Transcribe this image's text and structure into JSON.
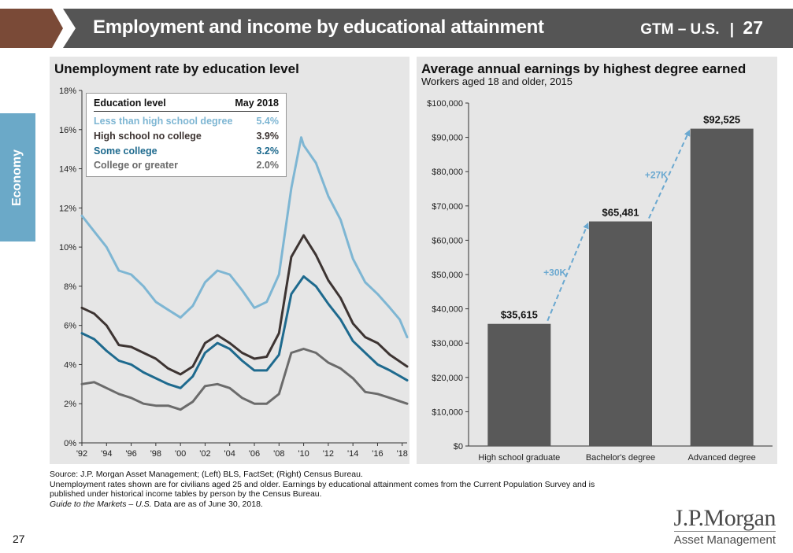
{
  "header": {
    "title": "Employment and income by educational attainment",
    "series": "GTM – U.S.",
    "separator": "|",
    "page": "27"
  },
  "sidebar": {
    "label": "Economy"
  },
  "left": {
    "title": "Unemployment rate by education level",
    "legend": {
      "head_label": "Education level",
      "head_value": "May 2018",
      "rows": [
        {
          "label": "Less than high school degree",
          "value": "5.4%",
          "color": "#7eb6d3"
        },
        {
          "label": "High school no college",
          "value": "3.9%",
          "color": "#3d3432"
        },
        {
          "label": "Some college",
          "value": "3.2%",
          "color": "#1e6a8e"
        },
        {
          "label": "College or greater",
          "value": "2.0%",
          "color": "#6b6b6b"
        }
      ]
    }
  },
  "right": {
    "title": "Average annual earnings by highest degree earned",
    "subtitle": "Workers aged 18 and older, 2015"
  },
  "chart_data": [
    {
      "type": "line",
      "title": "Unemployment rate by education level",
      "xlabel": "",
      "ylabel": "",
      "ylim": [
        0,
        18
      ],
      "yticks": [
        "0%",
        "2%",
        "4%",
        "6%",
        "8%",
        "10%",
        "12%",
        "14%",
        "16%",
        "18%"
      ],
      "xlim": [
        1992,
        2018.4
      ],
      "xticks": [
        {
          "v": 1992,
          "label": "'92"
        },
        {
          "v": 1994,
          "label": "'94"
        },
        {
          "v": 1996,
          "label": "'96"
        },
        {
          "v": 1998,
          "label": "'98"
        },
        {
          "v": 2000,
          "label": "'00"
        },
        {
          "v": 2002,
          "label": "'02"
        },
        {
          "v": 2004,
          "label": "'04"
        },
        {
          "v": 2006,
          "label": "'06"
        },
        {
          "v": 2008,
          "label": "'08"
        },
        {
          "v": 2010,
          "label": "'10"
        },
        {
          "v": 2012,
          "label": "'12"
        },
        {
          "v": 2014,
          "label": "'14"
        },
        {
          "v": 2016,
          "label": "'16"
        },
        {
          "v": 2018,
          "label": "'18"
        }
      ],
      "series": [
        {
          "name": "Less than high school degree",
          "color": "#7eb6d3",
          "x": [
            1992,
            1993,
            1994,
            1995,
            1996,
            1997,
            1998,
            1999,
            2000,
            2001,
            2002,
            2003,
            2004,
            2005,
            2006,
            2007,
            2008,
            2009,
            2009.8,
            2010,
            2011,
            2012,
            2013,
            2014,
            2015,
            2016,
            2017,
            2017.8,
            2018.4
          ],
          "y": [
            11.6,
            10.8,
            10.0,
            8.8,
            8.6,
            8.0,
            7.2,
            6.8,
            6.4,
            7.0,
            8.2,
            8.8,
            8.6,
            7.8,
            6.9,
            7.2,
            8.6,
            13.0,
            15.6,
            15.2,
            14.3,
            12.6,
            11.4,
            9.4,
            8.2,
            7.6,
            6.9,
            6.3,
            5.4
          ]
        },
        {
          "name": "High school no college",
          "color": "#3d3432",
          "x": [
            1992,
            1993,
            1994,
            1995,
            1996,
            1997,
            1998,
            1999,
            2000,
            2001,
            2002,
            2003,
            2004,
            2005,
            2006,
            2007,
            2008,
            2009,
            2010,
            2011,
            2012,
            2013,
            2014,
            2015,
            2016,
            2017,
            2018.4
          ],
          "y": [
            6.9,
            6.6,
            6.0,
            5.0,
            4.9,
            4.6,
            4.3,
            3.8,
            3.5,
            3.9,
            5.1,
            5.5,
            5.1,
            4.6,
            4.3,
            4.4,
            5.6,
            9.5,
            10.6,
            9.6,
            8.3,
            7.4,
            6.1,
            5.4,
            5.1,
            4.5,
            3.9
          ]
        },
        {
          "name": "Some college",
          "color": "#1e6a8e",
          "x": [
            1992,
            1993,
            1994,
            1995,
            1996,
            1997,
            1998,
            1999,
            2000,
            2001,
            2002,
            2003,
            2004,
            2005,
            2006,
            2007,
            2008,
            2009,
            2010,
            2011,
            2012,
            2013,
            2014,
            2015,
            2016,
            2017,
            2018.4
          ],
          "y": [
            5.6,
            5.3,
            4.7,
            4.2,
            4.0,
            3.6,
            3.3,
            3.0,
            2.8,
            3.4,
            4.6,
            5.1,
            4.8,
            4.2,
            3.7,
            3.7,
            4.5,
            7.6,
            8.5,
            8.0,
            7.1,
            6.3,
            5.2,
            4.6,
            4.0,
            3.7,
            3.2
          ]
        },
        {
          "name": "College or greater",
          "color": "#6b6b6b",
          "x": [
            1992,
            1993,
            1994,
            1995,
            1996,
            1997,
            1998,
            1999,
            2000,
            2001,
            2002,
            2003,
            2004,
            2005,
            2006,
            2007,
            2008,
            2009,
            2010,
            2011,
            2012,
            2013,
            2014,
            2015,
            2016,
            2017,
            2018.4
          ],
          "y": [
            3.0,
            3.1,
            2.8,
            2.5,
            2.3,
            2.0,
            1.9,
            1.9,
            1.7,
            2.1,
            2.9,
            3.0,
            2.8,
            2.3,
            2.0,
            2.0,
            2.5,
            4.6,
            4.8,
            4.6,
            4.1,
            3.8,
            3.3,
            2.6,
            2.5,
            2.3,
            2.0
          ]
        }
      ]
    },
    {
      "type": "bar",
      "title": "Average annual earnings by highest degree earned",
      "subtitle": "Workers aged 18 and older, 2015",
      "categories": [
        "High school graduate",
        "Bachelor's degree",
        "Advanced degree"
      ],
      "values": [
        35615,
        65481,
        92525
      ],
      "value_labels": [
        "$35,615",
        "$65,481",
        "$92,525"
      ],
      "ylim": [
        0,
        100000
      ],
      "yticks": [
        "$0",
        "$10,000",
        "$20,000",
        "$30,000",
        "$40,000",
        "$50,000",
        "$60,000",
        "$70,000",
        "$80,000",
        "$90,000",
        "$100,000"
      ],
      "bar_color": "#595959",
      "arrow_color": "#6aa8d0",
      "annotations": [
        "+30K",
        "+27K"
      ]
    }
  ],
  "footnotes": {
    "source": "Source: J.P. Morgan Asset Management; (Left) BLS, FactSet; (Right) Census Bureau.",
    "note_line1": "Unemployment rates shown are for civilians aged 25 and older. Earnings by educational attainment comes from the Current Population Survey and is",
    "note_line2": "published under historical income tables by person by the Census Bureau.",
    "guide_title": "Guide to the Markets – U.S.",
    "guide_rest": " Data are as of June 30, 2018."
  },
  "page_number": "27",
  "logo": {
    "main": "J.P.Morgan",
    "sub": "Asset Management"
  }
}
